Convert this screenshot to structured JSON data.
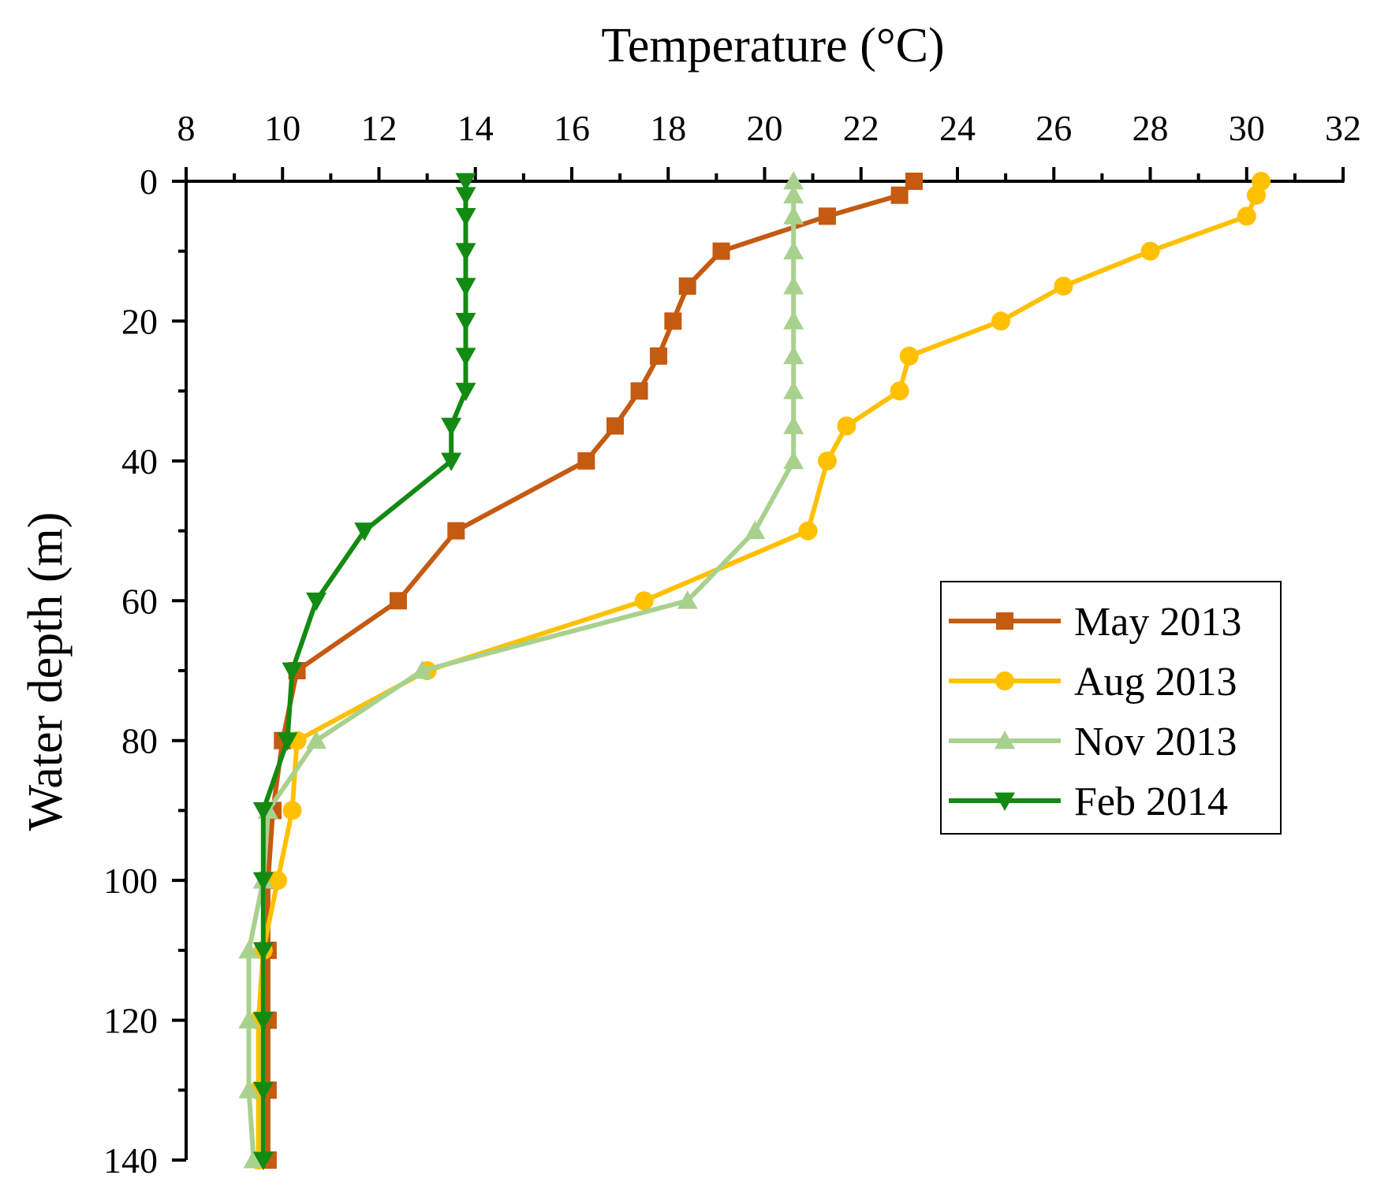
{
  "chart_data": {
    "type": "line",
    "title": "",
    "xlabel": "Temperature (°C)",
    "ylabel": "Water depth (m)",
    "xlim": [
      8,
      32
    ],
    "ylim": [
      0,
      140
    ],
    "y_inverted": true,
    "x_axis_position": "top",
    "x_ticks": [
      8,
      10,
      12,
      14,
      16,
      18,
      20,
      22,
      24,
      26,
      28,
      30,
      32
    ],
    "y_ticks": [
      0,
      20,
      40,
      60,
      80,
      100,
      120,
      140
    ],
    "grid": false,
    "legend_position": "right",
    "series": [
      {
        "name": "May 2013",
        "color": "#c55a11",
        "marker": "square",
        "points": [
          [
            23.1,
            0
          ],
          [
            22.8,
            2
          ],
          [
            21.3,
            5
          ],
          [
            19.1,
            10
          ],
          [
            18.4,
            15
          ],
          [
            18.1,
            20
          ],
          [
            17.8,
            25
          ],
          [
            17.4,
            30
          ],
          [
            16.9,
            35
          ],
          [
            16.3,
            40
          ],
          [
            13.6,
            50
          ],
          [
            12.4,
            60
          ],
          [
            10.3,
            70
          ],
          [
            10.0,
            80
          ],
          [
            9.8,
            90
          ],
          [
            9.7,
            100
          ],
          [
            9.7,
            110
          ],
          [
            9.7,
            120
          ],
          [
            9.7,
            130
          ],
          [
            9.7,
            140
          ]
        ]
      },
      {
        "name": "Aug 2013",
        "color": "#ffc000",
        "marker": "circle",
        "points": [
          [
            30.3,
            0
          ],
          [
            30.2,
            2
          ],
          [
            30.0,
            5
          ],
          [
            28.0,
            10
          ],
          [
            26.2,
            15
          ],
          [
            24.9,
            20
          ],
          [
            23.0,
            25
          ],
          [
            22.8,
            30
          ],
          [
            21.7,
            35
          ],
          [
            21.3,
            40
          ],
          [
            20.9,
            50
          ],
          [
            17.5,
            60
          ],
          [
            13.0,
            70
          ],
          [
            10.3,
            80
          ],
          [
            10.2,
            90
          ],
          [
            9.9,
            100
          ],
          [
            9.6,
            110
          ],
          [
            9.5,
            120
          ],
          [
            9.5,
            130
          ],
          [
            9.5,
            140
          ]
        ]
      },
      {
        "name": "Nov 2013",
        "color": "#a9d18e",
        "marker": "triangle-up",
        "points": [
          [
            20.6,
            0
          ],
          [
            20.6,
            2
          ],
          [
            20.6,
            5
          ],
          [
            20.6,
            10
          ],
          [
            20.6,
            15
          ],
          [
            20.6,
            20
          ],
          [
            20.6,
            25
          ],
          [
            20.6,
            30
          ],
          [
            20.6,
            35
          ],
          [
            20.6,
            40
          ],
          [
            19.8,
            50
          ],
          [
            18.4,
            60
          ],
          [
            12.9,
            70
          ],
          [
            10.7,
            80
          ],
          [
            9.7,
            90
          ],
          [
            9.6,
            100
          ],
          [
            9.3,
            110
          ],
          [
            9.3,
            120
          ],
          [
            9.3,
            130
          ],
          [
            9.4,
            140
          ]
        ]
      },
      {
        "name": "Feb 2014",
        "color": "#138a12",
        "marker": "triangle-down",
        "points": [
          [
            13.8,
            0
          ],
          [
            13.8,
            2
          ],
          [
            13.8,
            5
          ],
          [
            13.8,
            10
          ],
          [
            13.8,
            15
          ],
          [
            13.8,
            20
          ],
          [
            13.8,
            25
          ],
          [
            13.8,
            30
          ],
          [
            13.5,
            35
          ],
          [
            13.5,
            40
          ],
          [
            11.7,
            50
          ],
          [
            10.7,
            60
          ],
          [
            10.2,
            70
          ],
          [
            10.1,
            80
          ],
          [
            9.6,
            90
          ],
          [
            9.6,
            100
          ],
          [
            9.6,
            110
          ],
          [
            9.6,
            120
          ],
          [
            9.6,
            130
          ],
          [
            9.6,
            140
          ]
        ]
      }
    ]
  }
}
